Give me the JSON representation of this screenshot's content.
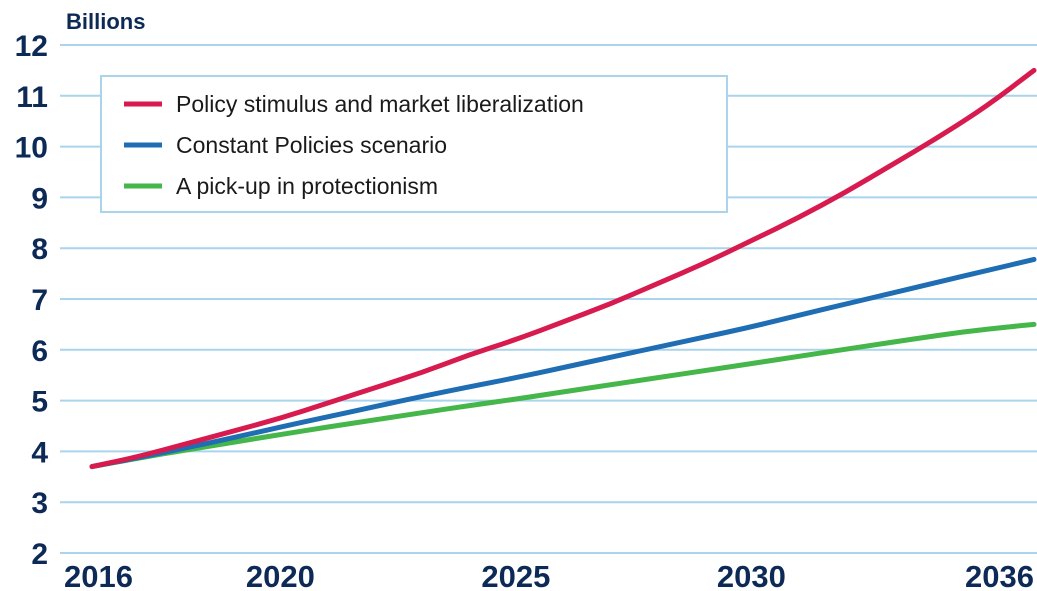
{
  "chart_data": {
    "type": "line",
    "ylabel": "Billions",
    "ylim": [
      2,
      12
    ],
    "y_ticks": [
      "2",
      "3",
      "4",
      "5",
      "6",
      "7",
      "8",
      "9",
      "10",
      "11",
      "12"
    ],
    "x_ticks": [
      "2016",
      "2020",
      "2025",
      "2030",
      "2036"
    ],
    "x": [
      2016,
      2017,
      2018,
      2019,
      2020,
      2021,
      2022,
      2023,
      2024,
      2025,
      2026,
      2027,
      2028,
      2029,
      2030,
      2031,
      2032,
      2033,
      2034,
      2035,
      2036
    ],
    "series": [
      {
        "name": "Policy stimulus and market liberalization",
        "color": "#d81b4f",
        "values": [
          3.7,
          3.9,
          4.15,
          4.4,
          4.65,
          4.95,
          5.25,
          5.55,
          5.9,
          6.2,
          6.55,
          6.9,
          7.3,
          7.7,
          8.15,
          8.6,
          9.1,
          9.65,
          10.2,
          10.8,
          11.5
        ]
      },
      {
        "name": "Constant Policies scenario",
        "color": "#1f6db3",
        "values": [
          3.7,
          3.88,
          4.07,
          4.27,
          4.48,
          4.68,
          4.88,
          5.08,
          5.27,
          5.45,
          5.65,
          5.85,
          6.05,
          6.25,
          6.45,
          6.68,
          6.9,
          7.12,
          7.34,
          7.56,
          7.78
        ]
      },
      {
        "name": "A pick-up in protectionism",
        "color": "#45b649",
        "values": [
          3.7,
          3.87,
          4.03,
          4.18,
          4.33,
          4.48,
          4.62,
          4.76,
          4.9,
          5.03,
          5.17,
          5.31,
          5.45,
          5.59,
          5.73,
          5.87,
          6.01,
          6.15,
          6.29,
          6.41,
          6.5
        ]
      }
    ],
    "grid": true,
    "legend_position": "top-left",
    "colors": {
      "grid": "#a9d4ec",
      "text": "#0d2a56",
      "legend_border": "#a9d4ec"
    }
  }
}
